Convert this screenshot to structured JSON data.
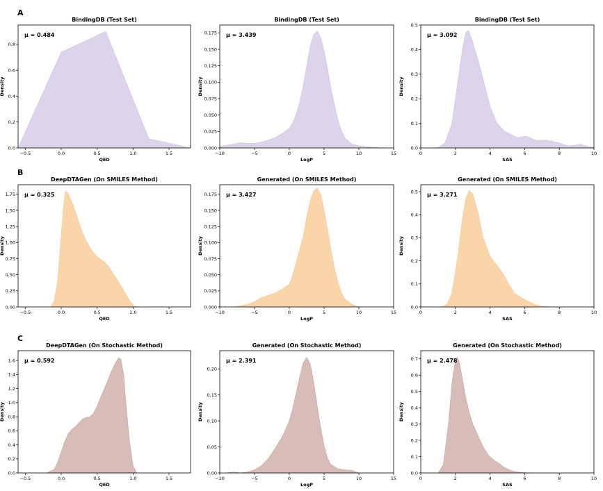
{
  "row_labels": [
    "A",
    "B",
    "C"
  ],
  "colors": {
    "row_A": "#ddd3ea",
    "row_B": "#fad5aa",
    "row_C": "#d7bcb8",
    "edge_A": "#cdc0e0",
    "edge_B": "#f2c48f",
    "edge_C": "#c3a39f"
  },
  "chart_data": [
    {
      "type": "area",
      "row": 0,
      "col": 0,
      "title": "BindingDB (Test Set)",
      "xlabel": "QED",
      "ylabel": "Density",
      "mu": "μ = 0.484",
      "xlim": [
        -0.6,
        1.8
      ],
      "ylim": [
        0,
        0.95
      ],
      "xticks": [
        {
          "v": -0.5,
          "l": "−0.5"
        },
        {
          "v": 0,
          "l": "0.0"
        },
        {
          "v": 0.5,
          "l": "0.5"
        },
        {
          "v": 1,
          "l": "1.0"
        },
        {
          "v": 1.5,
          "l": "1.5"
        }
      ],
      "yticks": [
        {
          "v": 0,
          "l": "0.0"
        },
        {
          "v": 0.2,
          "l": "0.2"
        },
        {
          "v": 0.4,
          "l": "0.4"
        },
        {
          "v": 0.6,
          "l": "0.6"
        },
        {
          "v": 0.8,
          "l": "0.8"
        }
      ],
      "x": [
        -0.6,
        0.0,
        0.62,
        1.22,
        1.8
      ],
      "y": [
        0.0,
        0.74,
        0.9,
        0.07,
        0.0
      ]
    },
    {
      "type": "area",
      "row": 0,
      "col": 1,
      "title": "BindingDB (Test Set)",
      "xlabel": "LogP",
      "ylabel": "Density",
      "mu": "μ = 3.439",
      "xlim": [
        -10,
        15
      ],
      "ylim": [
        0,
        0.187
      ],
      "xticks": [
        {
          "v": -10,
          "l": "−10"
        },
        {
          "v": -5,
          "l": "−5"
        },
        {
          "v": 0,
          "l": "0"
        },
        {
          "v": 5,
          "l": "5"
        },
        {
          "v": 10,
          "l": "10"
        },
        {
          "v": 15,
          "l": "15"
        }
      ],
      "yticks": [
        {
          "v": 0,
          "l": "0.000"
        },
        {
          "v": 0.025,
          "l": "0.025"
        },
        {
          "v": 0.05,
          "l": "0.050"
        },
        {
          "v": 0.075,
          "l": "0.075"
        },
        {
          "v": 0.1,
          "l": "0.100"
        },
        {
          "v": 0.125,
          "l": "0.125"
        },
        {
          "v": 0.15,
          "l": "0.150"
        },
        {
          "v": 0.175,
          "l": "0.175"
        }
      ],
      "x": [
        -10,
        -8,
        -7,
        -6,
        -5,
        -4,
        -3,
        -2,
        -1,
        0,
        0.5,
        1,
        1.5,
        2,
        2.5,
        3,
        3.5,
        4,
        4.5,
        5,
        5.5,
        6,
        6.5,
        7,
        7.5,
        8,
        9,
        10,
        11,
        12,
        13,
        15
      ],
      "y": [
        0.002,
        0.006,
        0.008,
        0.007,
        0.007,
        0.009,
        0.012,
        0.016,
        0.022,
        0.03,
        0.038,
        0.052,
        0.07,
        0.095,
        0.125,
        0.155,
        0.172,
        0.178,
        0.168,
        0.148,
        0.12,
        0.09,
        0.065,
        0.042,
        0.026,
        0.015,
        0.006,
        0.003,
        0.002,
        0.001,
        0.0005,
        0.0
      ]
    },
    {
      "type": "area",
      "row": 0,
      "col": 2,
      "title": "BindingDB (Test Set)",
      "xlabel": "SAS",
      "ylabel": "Density",
      "mu": "μ = 3.092",
      "xlim": [
        0,
        10
      ],
      "ylim": [
        0,
        0.5
      ],
      "xticks": [
        {
          "v": 0,
          "l": "0"
        },
        {
          "v": 2,
          "l": "2"
        },
        {
          "v": 4,
          "l": "4"
        },
        {
          "v": 6,
          "l": "6"
        },
        {
          "v": 8,
          "l": "8"
        },
        {
          "v": 10,
          "l": "10"
        }
      ],
      "yticks": [
        {
          "v": 0,
          "l": "0.0"
        },
        {
          "v": 0.1,
          "l": "0.1"
        },
        {
          "v": 0.2,
          "l": "0.2"
        },
        {
          "v": 0.3,
          "l": "0.3"
        },
        {
          "v": 0.4,
          "l": "0.4"
        },
        {
          "v": 0.5,
          "l": "0.5"
        }
      ],
      "x": [
        0.5,
        1.0,
        1.4,
        1.8,
        2.1,
        2.4,
        2.6,
        2.75,
        3.0,
        3.3,
        3.6,
        4.0,
        4.4,
        4.8,
        5.2,
        5.6,
        6.0,
        6.3,
        6.7,
        7.2,
        7.6,
        8.0,
        8.5,
        8.8,
        9.2,
        9.6,
        10.0
      ],
      "y": [
        0.0,
        0.002,
        0.02,
        0.1,
        0.25,
        0.4,
        0.47,
        0.478,
        0.43,
        0.36,
        0.28,
        0.17,
        0.1,
        0.07,
        0.055,
        0.042,
        0.048,
        0.042,
        0.03,
        0.032,
        0.027,
        0.02,
        0.008,
        0.01,
        0.015,
        0.007,
        0.002
      ]
    },
    {
      "type": "area",
      "row": 1,
      "col": 0,
      "title": "DeepDTAGen (On SMILES Method)",
      "xlabel": "QED",
      "ylabel": "Density",
      "mu": "μ = 0.325",
      "xlim": [
        -0.6,
        1.8
      ],
      "ylim": [
        0,
        1.9
      ],
      "xticks": [
        {
          "v": -0.5,
          "l": "−0.5"
        },
        {
          "v": 0,
          "l": "0.0"
        },
        {
          "v": 0.5,
          "l": "0.5"
        },
        {
          "v": 1,
          "l": "1.0"
        },
        {
          "v": 1.5,
          "l": "1.5"
        }
      ],
      "yticks": [
        {
          "v": 0,
          "l": "0.00"
        },
        {
          "v": 0.25,
          "l": "0.25"
        },
        {
          "v": 0.5,
          "l": "0.50"
        },
        {
          "v": 0.75,
          "l": "0.75"
        },
        {
          "v": 1.0,
          "l": "1.00"
        },
        {
          "v": 1.25,
          "l": "1.25"
        },
        {
          "v": 1.5,
          "l": "1.50"
        },
        {
          "v": 1.75,
          "l": "1.75"
        }
      ],
      "x": [
        -0.15,
        -0.1,
        -0.05,
        0.0,
        0.03,
        0.06,
        0.09,
        0.12,
        0.16,
        0.2,
        0.25,
        0.3,
        0.35,
        0.4,
        0.45,
        0.5,
        0.55,
        0.6,
        0.65,
        0.7,
        0.75,
        0.8,
        0.85,
        0.9,
        0.95,
        1.0,
        1.05
      ],
      "y": [
        0.0,
        0.08,
        0.4,
        1.1,
        1.55,
        1.8,
        1.78,
        1.7,
        1.6,
        1.47,
        1.3,
        1.15,
        1.02,
        0.92,
        0.84,
        0.78,
        0.74,
        0.7,
        0.64,
        0.56,
        0.47,
        0.38,
        0.3,
        0.2,
        0.1,
        0.03,
        0.0
      ]
    },
    {
      "type": "area",
      "row": 1,
      "col": 1,
      "title": "Generated (On SMILES Method)",
      "xlabel": "LogP",
      "ylabel": "Density",
      "mu": "μ = 3.427",
      "xlim": [
        -10,
        15
      ],
      "ylim": [
        0,
        0.19
      ],
      "xticks": [
        {
          "v": -10,
          "l": "−10"
        },
        {
          "v": -5,
          "l": "−5"
        },
        {
          "v": 0,
          "l": "0"
        },
        {
          "v": 5,
          "l": "5"
        },
        {
          "v": 10,
          "l": "10"
        },
        {
          "v": 15,
          "l": "15"
        }
      ],
      "yticks": [
        {
          "v": 0,
          "l": "0.000"
        },
        {
          "v": 0.025,
          "l": "0.025"
        },
        {
          "v": 0.05,
          "l": "0.050"
        },
        {
          "v": 0.075,
          "l": "0.075"
        },
        {
          "v": 0.1,
          "l": "0.100"
        },
        {
          "v": 0.125,
          "l": "0.125"
        },
        {
          "v": 0.15,
          "l": "0.150"
        },
        {
          "v": 0.175,
          "l": "0.175"
        }
      ],
      "x": [
        -8,
        -7,
        -6,
        -5,
        -4,
        -3,
        -2,
        -1,
        0,
        0.5,
        1,
        1.5,
        2,
        2.5,
        3,
        3.5,
        4,
        4.5,
        5,
        5.5,
        6,
        6.5,
        7,
        7.5,
        8,
        9,
        10
      ],
      "y": [
        0.0,
        0.002,
        0.004,
        0.008,
        0.015,
        0.018,
        0.022,
        0.028,
        0.035,
        0.05,
        0.07,
        0.09,
        0.11,
        0.14,
        0.165,
        0.18,
        0.185,
        0.175,
        0.15,
        0.12,
        0.088,
        0.06,
        0.038,
        0.022,
        0.012,
        0.004,
        0.0
      ]
    },
    {
      "type": "area",
      "row": 1,
      "col": 2,
      "title": "Generated (On SMILES Method)",
      "xlabel": "SAS",
      "ylabel": "Density",
      "mu": "μ = 3.271",
      "xlim": [
        0,
        10
      ],
      "ylim": [
        0,
        0.53
      ],
      "xticks": [
        {
          "v": 0,
          "l": "0"
        },
        {
          "v": 2,
          "l": "2"
        },
        {
          "v": 4,
          "l": "4"
        },
        {
          "v": 6,
          "l": "6"
        },
        {
          "v": 8,
          "l": "8"
        },
        {
          "v": 10,
          "l": "10"
        }
      ],
      "yticks": [
        {
          "v": 0,
          "l": "0.0"
        },
        {
          "v": 0.1,
          "l": "0.1"
        },
        {
          "v": 0.2,
          "l": "0.2"
        },
        {
          "v": 0.3,
          "l": "0.3"
        },
        {
          "v": 0.4,
          "l": "0.4"
        },
        {
          "v": 0.5,
          "l": "0.5"
        }
      ],
      "x": [
        1.2,
        1.5,
        1.8,
        2.1,
        2.4,
        2.6,
        2.8,
        3.0,
        3.3,
        3.6,
        4.0,
        4.4,
        4.7,
        5.0,
        5.4,
        5.8,
        6.2,
        6.6,
        7.0,
        7.5
      ],
      "y": [
        0.0,
        0.01,
        0.06,
        0.2,
        0.38,
        0.47,
        0.505,
        0.49,
        0.41,
        0.3,
        0.22,
        0.18,
        0.15,
        0.11,
        0.06,
        0.04,
        0.025,
        0.01,
        0.003,
        0.0
      ]
    },
    {
      "type": "area",
      "row": 2,
      "col": 0,
      "title": "DeepDTAGen (On Stochastic Method)",
      "xlabel": "QED",
      "ylabel": "Density",
      "mu": "μ = 0.592",
      "xlim": [
        -0.6,
        1.8
      ],
      "ylim": [
        0,
        1.74
      ],
      "xticks": [
        {
          "v": -0.5,
          "l": "−0.5"
        },
        {
          "v": 0,
          "l": "0.0"
        },
        {
          "v": 0.5,
          "l": "0.5"
        },
        {
          "v": 1,
          "l": "1.0"
        },
        {
          "v": 1.5,
          "l": "1.5"
        }
      ],
      "yticks": [
        {
          "v": 0,
          "l": "0.0"
        },
        {
          "v": 0.2,
          "l": "0.2"
        },
        {
          "v": 0.4,
          "l": "0.4"
        },
        {
          "v": 0.6,
          "l": "0.6"
        },
        {
          "v": 0.8,
          "l": "0.8"
        },
        {
          "v": 1.0,
          "l": "1.0"
        },
        {
          "v": 1.2,
          "l": "1.2"
        },
        {
          "v": 1.4,
          "l": "1.4"
        },
        {
          "v": 1.6,
          "l": "1.6"
        }
      ],
      "x": [
        -0.2,
        -0.1,
        -0.05,
        0.0,
        0.05,
        0.1,
        0.15,
        0.2,
        0.25,
        0.3,
        0.35,
        0.4,
        0.45,
        0.5,
        0.55,
        0.6,
        0.65,
        0.7,
        0.75,
        0.8,
        0.83,
        0.87,
        0.9,
        0.95,
        1.0,
        1.05
      ],
      "y": [
        0.0,
        0.05,
        0.15,
        0.3,
        0.45,
        0.56,
        0.62,
        0.66,
        0.72,
        0.77,
        0.79,
        0.8,
        0.85,
        0.95,
        1.08,
        1.2,
        1.32,
        1.45,
        1.56,
        1.64,
        1.62,
        1.4,
        1.0,
        0.45,
        0.1,
        0.0
      ]
    },
    {
      "type": "area",
      "row": 2,
      "col": 1,
      "title": "Generated (On Stochastic Method)",
      "xlabel": "LogP",
      "ylabel": "Density",
      "mu": "μ = 2.391",
      "xlim": [
        -10,
        15
      ],
      "ylim": [
        0,
        0.235
      ],
      "xticks": [
        {
          "v": -10,
          "l": "−10"
        },
        {
          "v": -5,
          "l": "−5"
        },
        {
          "v": 0,
          "l": "0"
        },
        {
          "v": 5,
          "l": "5"
        },
        {
          "v": 10,
          "l": "10"
        },
        {
          "v": 15,
          "l": "15"
        }
      ],
      "yticks": [
        {
          "v": 0,
          "l": "0.00"
        },
        {
          "v": 0.05,
          "l": "0.05"
        },
        {
          "v": 0.1,
          "l": "0.10"
        },
        {
          "v": 0.15,
          "l": "0.15"
        },
        {
          "v": 0.2,
          "l": "0.20"
        }
      ],
      "x": [
        -9,
        -8,
        -7,
        -6,
        -5,
        -4,
        -3,
        -2,
        -1,
        0,
        0.5,
        1,
        1.5,
        2,
        2.5,
        3,
        3.5,
        4,
        4.5,
        5,
        5.5,
        6,
        7,
        8,
        9,
        10
      ],
      "y": [
        0.0,
        0.002,
        0.0,
        0.002,
        0.006,
        0.014,
        0.028,
        0.048,
        0.07,
        0.1,
        0.125,
        0.155,
        0.185,
        0.212,
        0.222,
        0.21,
        0.175,
        0.13,
        0.088,
        0.052,
        0.028,
        0.016,
        0.008,
        0.006,
        0.005,
        0.0
      ]
    },
    {
      "type": "area",
      "row": 2,
      "col": 2,
      "title": "Generated (On Stochastic Method)",
      "xlabel": "SAS",
      "ylabel": "Density",
      "mu": "μ = 2.478",
      "xlim": [
        0,
        10
      ],
      "ylim": [
        0,
        0.75
      ],
      "xticks": [
        {
          "v": 0,
          "l": "0"
        },
        {
          "v": 2,
          "l": "2"
        },
        {
          "v": 4,
          "l": "4"
        },
        {
          "v": 6,
          "l": "6"
        },
        {
          "v": 8,
          "l": "8"
        },
        {
          "v": 10,
          "l": "10"
        }
      ],
      "yticks": [
        {
          "v": 0,
          "l": "0.0"
        },
        {
          "v": 0.1,
          "l": "0.1"
        },
        {
          "v": 0.2,
          "l": "0.2"
        },
        {
          "v": 0.3,
          "l": "0.3"
        },
        {
          "v": 0.4,
          "l": "0.4"
        },
        {
          "v": 0.5,
          "l": "0.5"
        },
        {
          "v": 0.6,
          "l": "0.6"
        },
        {
          "v": 0.7,
          "l": "0.7"
        }
      ],
      "x": [
        1.0,
        1.3,
        1.6,
        1.8,
        2.0,
        2.1,
        2.2,
        2.4,
        2.6,
        2.8,
        3.0,
        3.3,
        3.6,
        3.9,
        4.2,
        4.5,
        4.8,
        5.2,
        5.6,
        6.0,
        6.5
      ],
      "y": [
        0.0,
        0.05,
        0.3,
        0.55,
        0.69,
        0.71,
        0.69,
        0.58,
        0.46,
        0.37,
        0.3,
        0.23,
        0.16,
        0.11,
        0.08,
        0.06,
        0.035,
        0.015,
        0.005,
        0.002,
        0.0
      ]
    }
  ]
}
